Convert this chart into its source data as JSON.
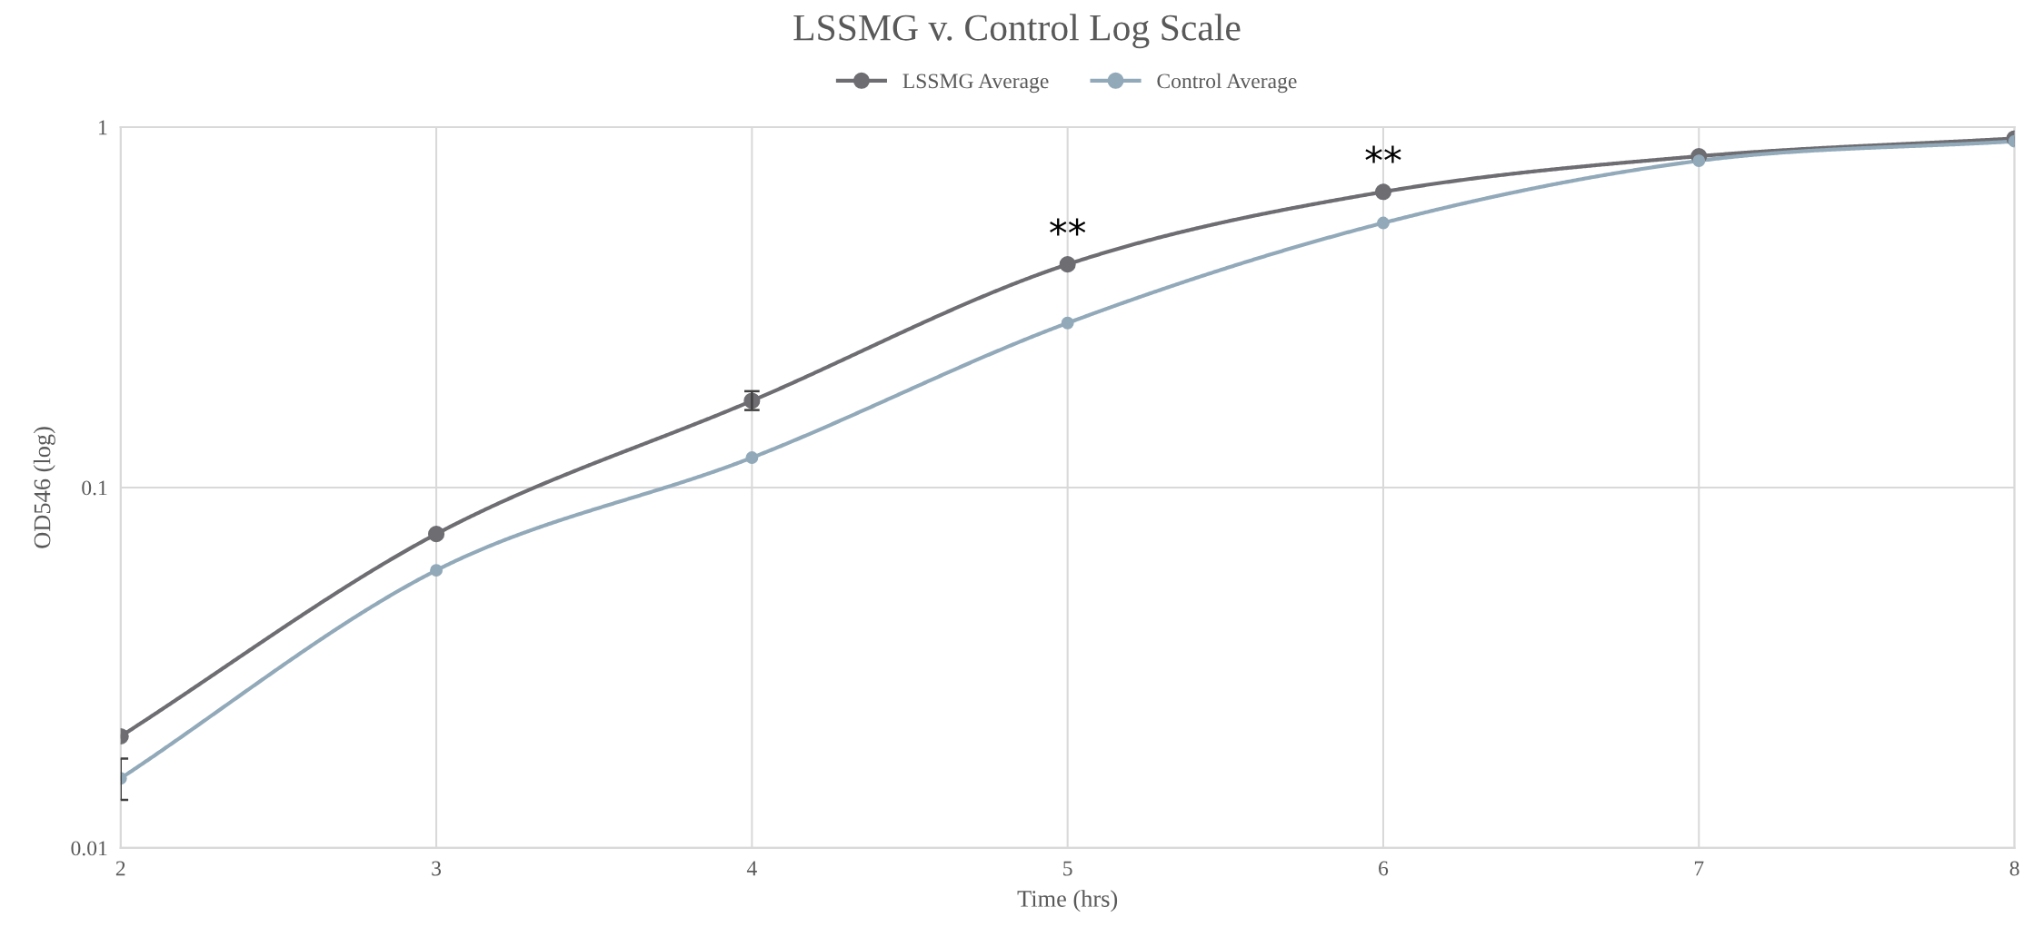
{
  "chart_data": {
    "type": "line",
    "title": "LSSMG v. Control Log Scale",
    "xlabel": "Time (hrs)",
    "ylabel": "OD546 (log)",
    "x": [
      2,
      3,
      4,
      5,
      6,
      7,
      8
    ],
    "series": [
      {
        "name": "LSSMG Average",
        "color": "#6d6d72",
        "values": [
          0.0204,
          0.0743,
          0.174,
          0.416,
          0.661,
          0.83,
          0.93
        ],
        "errors": [
          null,
          null,
          [
            0.164,
            0.185
          ],
          null,
          null,
          null,
          null
        ]
      },
      {
        "name": "Control Average",
        "color": "#91a9b9",
        "values": [
          0.0156,
          0.0589,
          0.121,
          0.286,
          0.542,
          0.806,
          0.913
        ],
        "errors": [
          [
            0.0136,
            0.0177
          ],
          null,
          null,
          null,
          null,
          null,
          null
        ]
      }
    ],
    "annotations": [
      {
        "text": "**",
        "x": 5,
        "y": 0.416
      },
      {
        "text": "**",
        "x": 6,
        "y": 0.661
      }
    ],
    "log": "y",
    "xlim": [
      2,
      8
    ],
    "xticks": [
      2,
      3,
      4,
      5,
      6,
      7,
      8
    ],
    "ylim": [
      0.01,
      1
    ],
    "yticks": [
      0.01,
      0.1,
      1
    ],
    "grid": true,
    "legend": "top",
    "marker": "circle",
    "line_style": "solid"
  }
}
